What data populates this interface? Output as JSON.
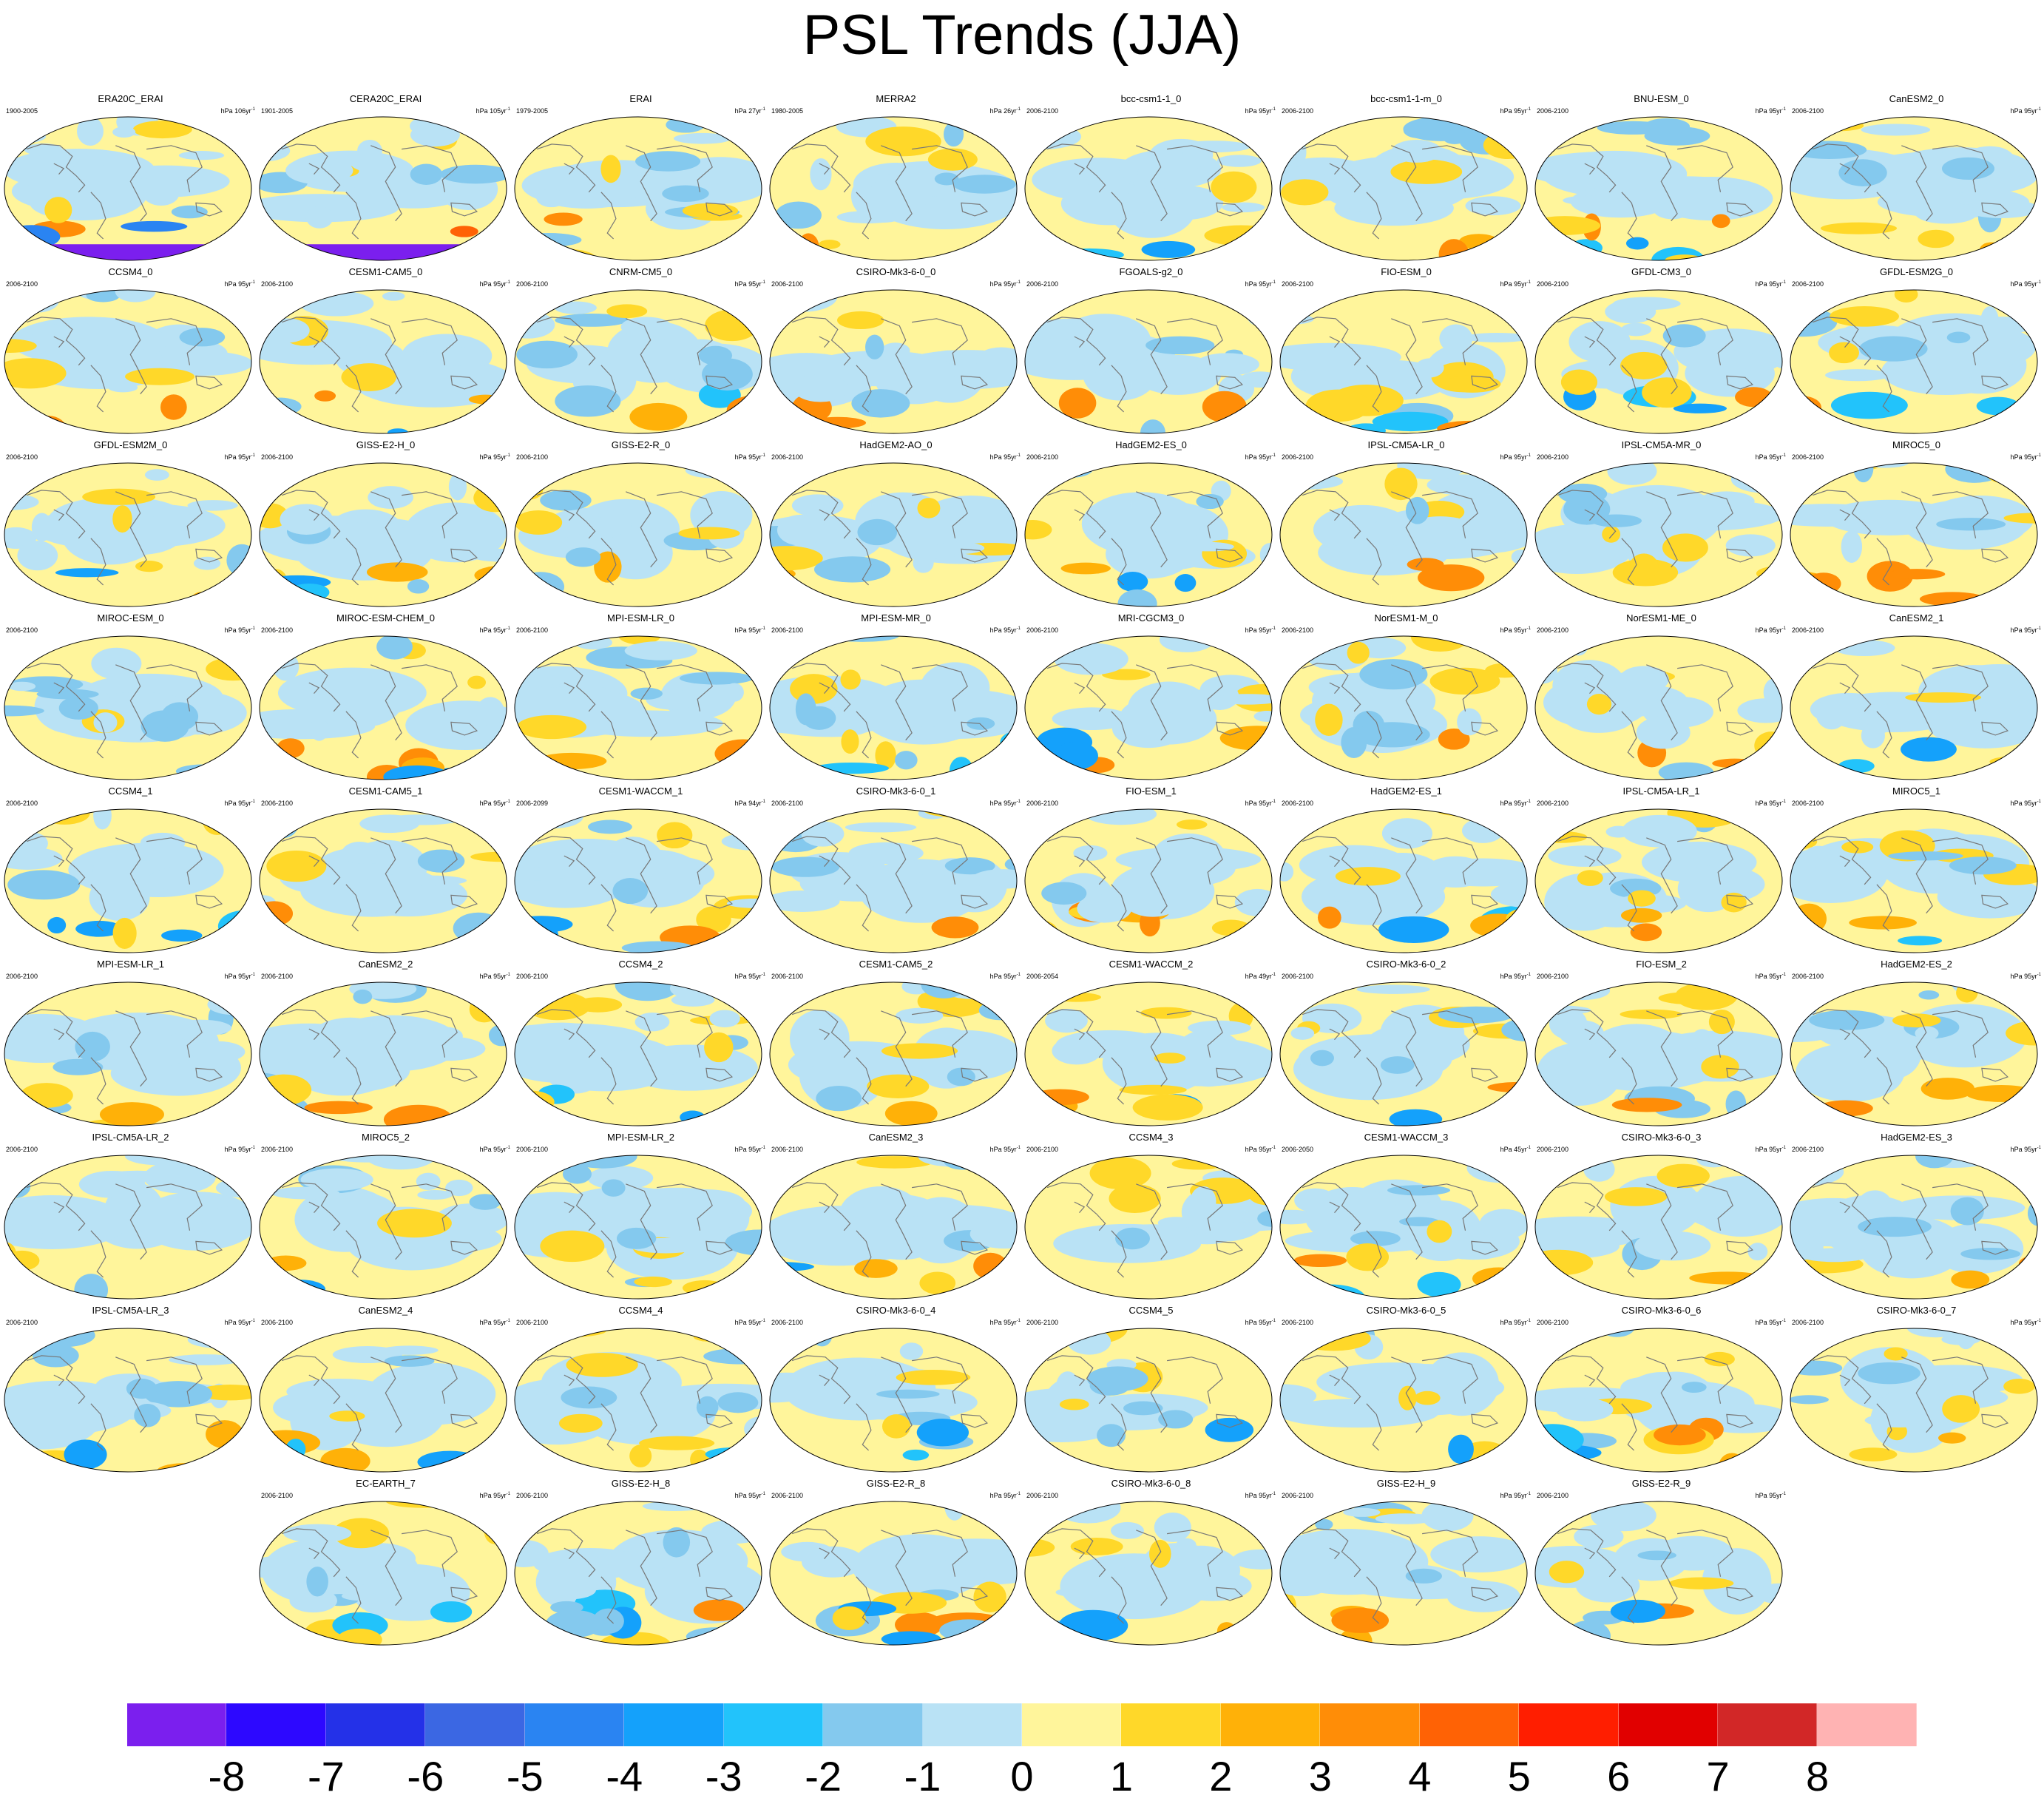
{
  "title": "PSL Trends (JJA)",
  "colorbar": {
    "colors": [
      "#7b1fee",
      "#2d08ff",
      "#2431e8",
      "#3b67e3",
      "#2a84f2",
      "#14a1fb",
      "#22c3fb",
      "#84c9ee",
      "#b9e2f5",
      "#fff59b",
      "#ffd829",
      "#ffb108",
      "#ff8d07",
      "#ff6205",
      "#ff1e00",
      "#e10000",
      "#d22727",
      "#ffb3b3"
    ],
    "tick_labels": [
      "-8",
      "-7",
      "-6",
      "-5",
      "-4",
      "-3",
      "-2",
      "-1",
      "0",
      "1",
      "2",
      "3",
      "4",
      "5",
      "6",
      "7",
      "8"
    ]
  },
  "panels": [
    {
      "name": "ERA20C_ERAI",
      "period": "1900-2005",
      "scale": "106"
    },
    {
      "name": "CERA20C_ERAI",
      "period": "1901-2005",
      "scale": "105"
    },
    {
      "name": "ERAI",
      "period": "1979-2005",
      "scale": "27"
    },
    {
      "name": "MERRA2",
      "period": "1980-2005",
      "scale": "26"
    },
    {
      "name": "bcc-csm1-1_0",
      "period": "2006-2100",
      "scale": "95"
    },
    {
      "name": "bcc-csm1-1-m_0",
      "period": "2006-2100",
      "scale": "95"
    },
    {
      "name": "BNU-ESM_0",
      "period": "2006-2100",
      "scale": "95"
    },
    {
      "name": "CanESM2_0",
      "period": "2006-2100",
      "scale": "95"
    },
    {
      "name": "CCSM4_0",
      "period": "2006-2100",
      "scale": "95"
    },
    {
      "name": "CESM1-CAM5_0",
      "period": "2006-2100",
      "scale": "95"
    },
    {
      "name": "CNRM-CM5_0",
      "period": "2006-2100",
      "scale": "95"
    },
    {
      "name": "CSIRO-Mk3-6-0_0",
      "period": "2006-2100",
      "scale": "95"
    },
    {
      "name": "FGOALS-g2_0",
      "period": "2006-2100",
      "scale": "95"
    },
    {
      "name": "FIO-ESM_0",
      "period": "2006-2100",
      "scale": "95"
    },
    {
      "name": "GFDL-CM3_0",
      "period": "2006-2100",
      "scale": "95"
    },
    {
      "name": "GFDL-ESM2G_0",
      "period": "2006-2100",
      "scale": "95"
    },
    {
      "name": "GFDL-ESM2M_0",
      "period": "2006-2100",
      "scale": "95"
    },
    {
      "name": "GISS-E2-H_0",
      "period": "2006-2100",
      "scale": "95"
    },
    {
      "name": "GISS-E2-R_0",
      "period": "2006-2100",
      "scale": "95"
    },
    {
      "name": "HadGEM2-AO_0",
      "period": "2006-2100",
      "scale": "95"
    },
    {
      "name": "HadGEM2-ES_0",
      "period": "2006-2100",
      "scale": "95"
    },
    {
      "name": "IPSL-CM5A-LR_0",
      "period": "2006-2100",
      "scale": "95"
    },
    {
      "name": "IPSL-CM5A-MR_0",
      "period": "2006-2100",
      "scale": "95"
    },
    {
      "name": "MIROC5_0",
      "period": "2006-2100",
      "scale": "95"
    },
    {
      "name": "MIROC-ESM_0",
      "period": "2006-2100",
      "scale": "95"
    },
    {
      "name": "MIROC-ESM-CHEM_0",
      "period": "2006-2100",
      "scale": "95"
    },
    {
      "name": "MPI-ESM-LR_0",
      "period": "2006-2100",
      "scale": "95"
    },
    {
      "name": "MPI-ESM-MR_0",
      "period": "2006-2100",
      "scale": "95"
    },
    {
      "name": "MRI-CGCM3_0",
      "period": "2006-2100",
      "scale": "95"
    },
    {
      "name": "NorESM1-M_0",
      "period": "2006-2100",
      "scale": "95"
    },
    {
      "name": "NorESM1-ME_0",
      "period": "2006-2100",
      "scale": "95"
    },
    {
      "name": "CanESM2_1",
      "period": "2006-2100",
      "scale": "95"
    },
    {
      "name": "CCSM4_1",
      "period": "2006-2100",
      "scale": "95"
    },
    {
      "name": "CESM1-CAM5_1",
      "period": "2006-2100",
      "scale": "95"
    },
    {
      "name": "CESM1-WACCM_1",
      "period": "2006-2099",
      "scale": "94"
    },
    {
      "name": "CSIRO-Mk3-6-0_1",
      "period": "2006-2100",
      "scale": "95"
    },
    {
      "name": "FIO-ESM_1",
      "period": "2006-2100",
      "scale": "95"
    },
    {
      "name": "HadGEM2-ES_1",
      "period": "2006-2100",
      "scale": "95"
    },
    {
      "name": "IPSL-CM5A-LR_1",
      "period": "2006-2100",
      "scale": "95"
    },
    {
      "name": "MIROC5_1",
      "period": "2006-2100",
      "scale": "95"
    },
    {
      "name": "MPI-ESM-LR_1",
      "period": "2006-2100",
      "scale": "95"
    },
    {
      "name": "CanESM2_2",
      "period": "2006-2100",
      "scale": "95"
    },
    {
      "name": "CCSM4_2",
      "period": "2006-2100",
      "scale": "95"
    },
    {
      "name": "CESM1-CAM5_2",
      "period": "2006-2100",
      "scale": "95"
    },
    {
      "name": "CESM1-WACCM_2",
      "period": "2006-2054",
      "scale": "49"
    },
    {
      "name": "CSIRO-Mk3-6-0_2",
      "period": "2006-2100",
      "scale": "95"
    },
    {
      "name": "FIO-ESM_2",
      "period": "2006-2100",
      "scale": "95"
    },
    {
      "name": "HadGEM2-ES_2",
      "period": "2006-2100",
      "scale": "95"
    },
    {
      "name": "IPSL-CM5A-LR_2",
      "period": "2006-2100",
      "scale": "95"
    },
    {
      "name": "MIROC5_2",
      "period": "2006-2100",
      "scale": "95"
    },
    {
      "name": "MPI-ESM-LR_2",
      "period": "2006-2100",
      "scale": "95"
    },
    {
      "name": "CanESM2_3",
      "period": "2006-2100",
      "scale": "95"
    },
    {
      "name": "CCSM4_3",
      "period": "2006-2100",
      "scale": "95"
    },
    {
      "name": "CESM1-WACCM_3",
      "period": "2006-2050",
      "scale": "45"
    },
    {
      "name": "CSIRO-Mk3-6-0_3",
      "period": "2006-2100",
      "scale": "95"
    },
    {
      "name": "HadGEM2-ES_3",
      "period": "2006-2100",
      "scale": "95"
    },
    {
      "name": "IPSL-CM5A-LR_3",
      "period": "2006-2100",
      "scale": "95"
    },
    {
      "name": "CanESM2_4",
      "period": "2006-2100",
      "scale": "95"
    },
    {
      "name": "CCSM4_4",
      "period": "2006-2100",
      "scale": "95"
    },
    {
      "name": "CSIRO-Mk3-6-0_4",
      "period": "2006-2100",
      "scale": "95"
    },
    {
      "name": "CCSM4_5",
      "period": "2006-2100",
      "scale": "95"
    },
    {
      "name": "CSIRO-Mk3-6-0_5",
      "period": "2006-2100",
      "scale": "95"
    },
    {
      "name": "CSIRO-Mk3-6-0_6",
      "period": "2006-2100",
      "scale": "95"
    },
    {
      "name": "CSIRO-Mk3-6-0_7",
      "period": "2006-2100",
      "scale": "95"
    },
    {
      "name": "EC-EARTH_7",
      "period": "2006-2100",
      "scale": "95"
    },
    {
      "name": "GISS-E2-H_8",
      "period": "2006-2100",
      "scale": "95"
    },
    {
      "name": "GISS-E2-R_8",
      "period": "2006-2100",
      "scale": "95"
    },
    {
      "name": "CSIRO-Mk3-6-0_8",
      "period": "2006-2100",
      "scale": "95"
    },
    {
      "name": "GISS-E2-H_9",
      "period": "2006-2100",
      "scale": "95"
    },
    {
      "name": "GISS-E2-R_9",
      "period": "2006-2100",
      "scale": "95"
    }
  ],
  "chart_data": {
    "type": "heatmap",
    "title": "PSL Trends (JJA)",
    "variable": "sea level pressure trend",
    "season": "JJA",
    "color_levels": [
      -8,
      -7,
      -6,
      -5,
      -4,
      -3,
      -2,
      -1,
      0,
      1,
      2,
      3,
      4,
      5,
      6,
      7,
      8
    ],
    "panel_count": 70,
    "grid_columns": 8
  }
}
